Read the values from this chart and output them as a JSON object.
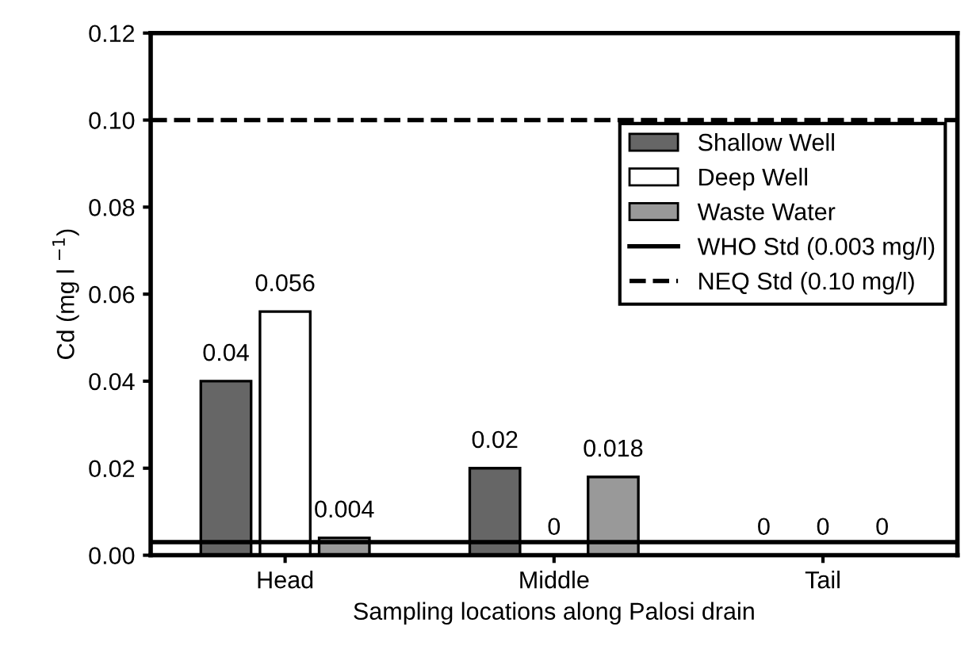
{
  "chart_data": {
    "type": "bar",
    "xlabel": "Sampling locations along Palosi drain",
    "ylabel": "Cd (mg l $^{−1}$)",
    "categories": [
      "Head",
      "Middle",
      "Tail"
    ],
    "series": [
      {
        "name": "Shallow Well",
        "color": "#666666",
        "values": [
          0.04,
          0.02,
          0
        ]
      },
      {
        "name": "Deep Well",
        "color": "#ffffff",
        "values": [
          0.056,
          0,
          0
        ]
      },
      {
        "name": "Waste Water",
        "color": "#999999",
        "values": [
          0.004,
          0.018,
          0
        ]
      }
    ],
    "ylim": [
      0,
      0.12
    ],
    "yticks": [
      {
        "value": 0,
        "label": "0.00"
      },
      {
        "value": 0.02,
        "label": "0.02"
      },
      {
        "value": 0.04,
        "label": "0.04"
      },
      {
        "value": 0.06,
        "label": "0.06"
      },
      {
        "value": 0.08,
        "label": "0.08"
      },
      {
        "value": 0.1,
        "label": "0.10"
      },
      {
        "value": 0.12,
        "label": "0.12"
      }
    ],
    "ref_lines": [
      {
        "axis": "y",
        "value": 0.003,
        "label": "WHO Std (0.003 mg/l)",
        "color": "#000000",
        "line_style": "solid"
      },
      {
        "axis": "y",
        "value": 0.1,
        "label": "NEQ Std (0.10 mg/l)",
        "color": "#000000",
        "line_style": "dashed"
      }
    ],
    "data_labels": true,
    "grid": false,
    "legend": "top right"
  }
}
